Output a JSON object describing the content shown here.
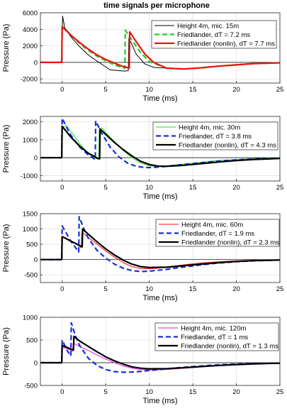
{
  "chart_data": [
    {
      "type": "line",
      "title": "time signals per microphone",
      "xlabel": "Time (ms)",
      "ylabel": "Pressure (Pa)",
      "xlim": [
        -2.5,
        25
      ],
      "ylim": [
        -2500,
        6000
      ],
      "xticks": [
        0,
        5,
        10,
        15,
        20,
        25
      ],
      "yticks": [
        -2000,
        0,
        2000,
        4000,
        6000
      ],
      "ytick_labels": [
        "-2000",
        "0",
        "2000",
        "4000",
        "6000"
      ],
      "legend_position": "top-right",
      "series": [
        {
          "name": "Height 4m, mic. 15m",
          "color": "#000000",
          "style": "solid-thin",
          "x": [
            -2.5,
            -0.1,
            0.0,
            0.05,
            0.3,
            1.0,
            2.0,
            3.0,
            4.0,
            4.8,
            5.5,
            6.5,
            7.2,
            7.6,
            7.65,
            8.0,
            8.5,
            9.5,
            10.5,
            12.0,
            14.0,
            16.0,
            18.0,
            20.0,
            22.0,
            25.0
          ],
          "y": [
            0,
            0,
            0,
            5600,
            4200,
            3100,
            1900,
            900,
            150,
            -400,
            -900,
            -1000,
            -1050,
            -1000,
            2900,
            2200,
            1000,
            -200,
            -600,
            -700,
            -800,
            -650,
            -450,
            -250,
            -100,
            0
          ]
        },
        {
          "name": "Friedlander, dT = 7.2 ms",
          "color": "#22cc22",
          "style": "dashed",
          "x": [
            -2.5,
            -0.05,
            0.0,
            0.5,
            1.0,
            2.0,
            3.0,
            4.0,
            5.0,
            6.0,
            7.0,
            7.2,
            7.25,
            8.0,
            9.0,
            10.0,
            12.0,
            14.0,
            16.0,
            18.0,
            20.0,
            22.0,
            25.0
          ],
          "y": [
            0,
            0,
            4400,
            3900,
            3300,
            2300,
            1450,
            750,
            200,
            -300,
            -650,
            -700,
            3900,
            2700,
            1200,
            100,
            -700,
            -800,
            -650,
            -450,
            -300,
            -150,
            -50
          ]
        },
        {
          "name": "Friedlander (nonlin), dT = 7.7 ms",
          "color": "#ee1111",
          "style": "solid-thick",
          "x": [
            -2.5,
            -0.05,
            0.0,
            0.5,
            1.0,
            2.0,
            3.0,
            4.0,
            5.0,
            6.0,
            7.0,
            7.7,
            7.75,
            8.5,
            9.5,
            10.5,
            12.0,
            14.0,
            16.0,
            18.0,
            20.0,
            22.0,
            25.0
          ],
          "y": [
            0,
            0,
            4300,
            3800,
            3300,
            2400,
            1600,
            900,
            350,
            -100,
            -500,
            -700,
            3700,
            2500,
            1000,
            0,
            -700,
            -800,
            -650,
            -450,
            -300,
            -150,
            -50
          ]
        }
      ]
    },
    {
      "type": "line",
      "title": "",
      "xlabel": "Time (ms)",
      "ylabel": "Pressure (Pa)",
      "xlim": [
        -2.5,
        25
      ],
      "ylim": [
        -1300,
        2300
      ],
      "xticks": [
        0,
        5,
        10,
        15,
        20,
        25
      ],
      "yticks": [
        -1000,
        0,
        1000,
        2000
      ],
      "ytick_labels": [
        "-1000",
        "0",
        "1000",
        "2000"
      ],
      "legend_position": "top-right",
      "series": [
        {
          "name": "Height 4m, mic. 30m",
          "color": "#22dd22",
          "style": "solid-thin",
          "x": [
            -2.5,
            -0.1,
            0.0,
            0.05,
            0.5,
            1.0,
            1.5,
            2.0,
            2.5,
            3.0,
            3.5,
            4.2,
            4.25,
            4.6,
            5.0,
            6.0,
            7.0,
            8.0,
            9.0,
            10.0,
            11.0,
            12.0,
            14.0,
            16.0,
            18.0,
            20.0,
            22.0,
            25.0
          ],
          "y": [
            0,
            0,
            0,
            1700,
            1800,
            1450,
            1150,
            800,
            500,
            250,
            50,
            -100,
            1600,
            1650,
            1400,
            900,
            400,
            0,
            -300,
            -450,
            -500,
            -450,
            -350,
            -250,
            -150,
            -100,
            -50,
            0
          ]
        },
        {
          "name": "Friedlander, dT = 3.8 ms",
          "color": "#1a2fd8",
          "style": "dashed",
          "x": [
            -2.5,
            -0.05,
            0.0,
            0.5,
            1.0,
            2.0,
            3.0,
            3.8,
            3.85,
            4.5,
            5.5,
            6.5,
            7.5,
            8.5,
            9.5,
            10.5,
            12.0,
            14.0,
            16.0,
            18.0,
            20.0,
            22.0,
            25.0
          ],
          "y": [
            0,
            0,
            2200,
            1700,
            1250,
            600,
            150,
            -100,
            2050,
            1400,
            600,
            50,
            -300,
            -480,
            -550,
            -550,
            -480,
            -380,
            -280,
            -190,
            -120,
            -70,
            -30
          ]
        },
        {
          "name": "Friedlander (nonlin), dT = 4.3 ms",
          "color": "#000000",
          "style": "solid-thick",
          "x": [
            -2.5,
            -0.05,
            0.0,
            0.5,
            1.0,
            2.0,
            3.0,
            4.0,
            4.3,
            4.35,
            5.0,
            6.0,
            7.0,
            8.0,
            9.0,
            10.0,
            11.0,
            12.0,
            14.0,
            16.0,
            18.0,
            20.0,
            22.0,
            25.0
          ],
          "y": [
            0,
            0,
            1750,
            1450,
            1150,
            650,
            250,
            -20,
            -60,
            1600,
            1300,
            850,
            450,
            100,
            -200,
            -380,
            -470,
            -480,
            -420,
            -330,
            -240,
            -160,
            -100,
            -40
          ]
        }
      ]
    },
    {
      "type": "line",
      "title": "",
      "xlabel": "Time (ms)",
      "ylabel": "Pressure (Pa)",
      "xlim": [
        -2.5,
        25
      ],
      "ylim": [
        -750,
        1500
      ],
      "xticks": [
        0,
        5,
        10,
        15,
        20,
        25
      ],
      "yticks": [
        -500,
        0,
        500,
        1000,
        1500
      ],
      "ytick_labels": [
        "-500",
        "0",
        "500",
        "1000",
        "1500"
      ],
      "legend_position": "top-right",
      "series": [
        {
          "name": "Height 4m, mic. 60m",
          "color": "#ee1111",
          "style": "solid-thin",
          "x": [
            -2.5,
            -0.1,
            0.0,
            0.05,
            0.5,
            1.0,
            1.5,
            2.0,
            2.2,
            2.25,
            2.6,
            3.0,
            4.0,
            5.0,
            6.0,
            7.0,
            8.0,
            9.0,
            10.0,
            11.0,
            12.0,
            14.0,
            16.0,
            18.0,
            20.0,
            22.0,
            25.0
          ],
          "y": [
            0,
            0,
            0,
            750,
            700,
            600,
            520,
            430,
            380,
            880,
            820,
            720,
            500,
            280,
            80,
            -100,
            -230,
            -290,
            -300,
            -280,
            -240,
            -170,
            -110,
            -70,
            -40,
            -20,
            0
          ]
        },
        {
          "name": "Friedlander, dT = 1.9 ms",
          "color": "#1a2fd8",
          "style": "dashed",
          "x": [
            -2.5,
            -0.05,
            0.0,
            0.5,
            1.0,
            1.5,
            1.9,
            1.95,
            2.5,
            3.0,
            4.0,
            5.0,
            6.0,
            7.0,
            8.0,
            9.0,
            10.0,
            12.0,
            14.0,
            16.0,
            18.0,
            20.0,
            22.0,
            25.0
          ],
          "y": [
            0,
            0,
            1100,
            850,
            600,
            400,
            250,
            1400,
            1000,
            700,
            300,
            50,
            -150,
            -280,
            -360,
            -390,
            -380,
            -320,
            -240,
            -170,
            -110,
            -70,
            -40,
            -15
          ]
        },
        {
          "name": "Friedlander (nonlin), dT = 2.3 ms",
          "color": "#000000",
          "style": "solid-thick",
          "x": [
            -2.5,
            -0.05,
            0.0,
            0.5,
            1.0,
            1.5,
            2.0,
            2.3,
            2.35,
            3.0,
            4.0,
            5.0,
            6.0,
            7.0,
            8.0,
            9.0,
            10.0,
            12.0,
            14.0,
            16.0,
            18.0,
            20.0,
            22.0,
            25.0
          ],
          "y": [
            0,
            0,
            750,
            680,
            600,
            530,
            460,
            420,
            1000,
            830,
            580,
            350,
            150,
            -20,
            -150,
            -230,
            -260,
            -250,
            -200,
            -150,
            -100,
            -60,
            -35,
            -15
          ]
        }
      ]
    },
    {
      "type": "line",
      "title": "",
      "xlabel": "Time (ms)",
      "ylabel": "Pressure (Pa)",
      "xlim": [
        -2.5,
        25
      ],
      "ylim": [
        -500,
        1000
      ],
      "xticks": [
        0,
        5,
        10,
        15,
        20,
        25
      ],
      "yticks": [
        -500,
        0,
        500,
        1000
      ],
      "ytick_labels": [
        "-500",
        "0",
        "500",
        "1000"
      ],
      "legend_position": "top-right",
      "series": [
        {
          "name": "Height 4m, mic. 120m",
          "color": "#dd22dd",
          "style": "solid-thin",
          "x": [
            -2.5,
            -0.1,
            0.0,
            0.05,
            0.5,
            1.0,
            1.2,
            1.25,
            1.6,
            2.0,
            3.0,
            4.0,
            5.0,
            6.0,
            7.0,
            8.0,
            9.0,
            10.0,
            12.0,
            14.0,
            16.0,
            18.0,
            20.0,
            22.0,
            25.0
          ],
          "y": [
            0,
            0,
            0,
            330,
            320,
            270,
            250,
            420,
            400,
            360,
            270,
            170,
            80,
            0,
            -70,
            -120,
            -150,
            -160,
            -150,
            -120,
            -90,
            -60,
            -40,
            -20,
            0
          ]
        },
        {
          "name": "Friedlander, dT = 1 ms",
          "color": "#1a2fd8",
          "style": "dashed",
          "x": [
            -2.5,
            -0.05,
            0.0,
            0.3,
            0.6,
            1.0,
            1.05,
            1.5,
            2.0,
            3.0,
            4.0,
            5.0,
            6.0,
            7.0,
            8.0,
            9.0,
            10.0,
            12.0,
            14.0,
            16.0,
            18.0,
            20.0,
            22.0,
            25.0
          ],
          "y": [
            0,
            0,
            500,
            380,
            260,
            150,
            880,
            600,
            380,
            100,
            -60,
            -150,
            -195,
            -210,
            -205,
            -190,
            -170,
            -135,
            -100,
            -70,
            -45,
            -30,
            -18,
            -8
          ]
        },
        {
          "name": "Friedlander (nonlin), dT = 1.3 ms",
          "color": "#000000",
          "style": "solid-thick",
          "x": [
            -2.5,
            -0.05,
            0.0,
            0.5,
            1.0,
            1.3,
            1.35,
            2.0,
            3.0,
            4.0,
            5.0,
            6.0,
            7.0,
            8.0,
            9.0,
            10.0,
            12.0,
            14.0,
            16.0,
            18.0,
            20.0,
            22.0,
            25.0
          ],
          "y": [
            0,
            0,
            380,
            340,
            300,
            280,
            580,
            480,
            360,
            240,
            130,
            40,
            -30,
            -90,
            -120,
            -135,
            -130,
            -110,
            -85,
            -60,
            -40,
            -25,
            -10
          ]
        }
      ]
    }
  ]
}
